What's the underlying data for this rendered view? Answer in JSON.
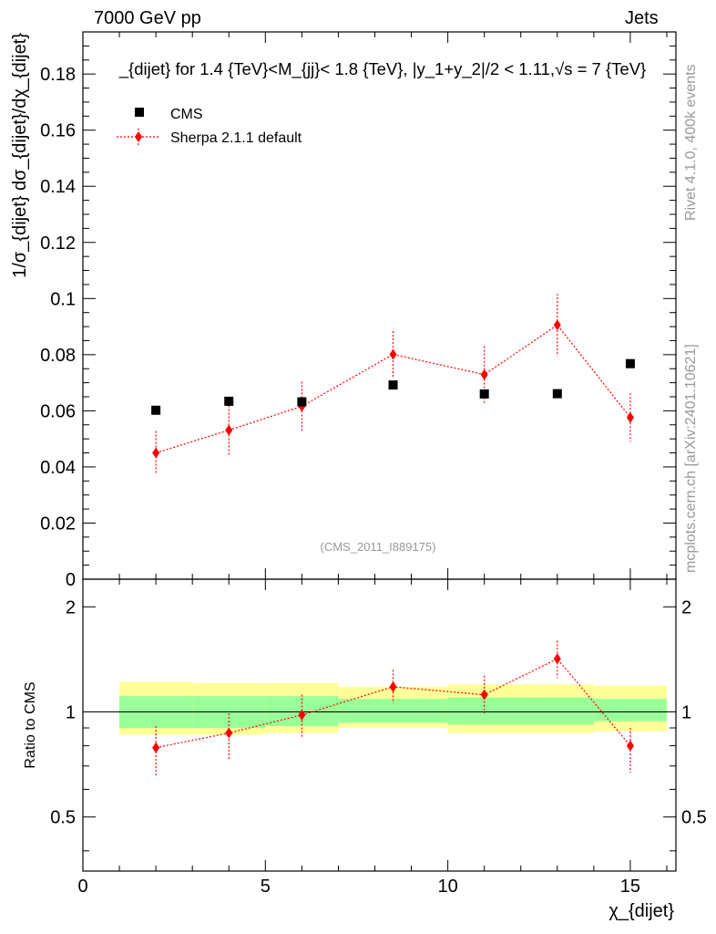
{
  "header": {
    "energy_label": "7000 GeV pp",
    "category_label": "Jets",
    "side_rivet": "Rivet 4.1.0,  400k events",
    "side_mcplots": "mcplots.cern.ch [arXiv:2401.10621]",
    "analysis_id": "(CMS_2011_I889175)"
  },
  "chart_data": {
    "type": "scatter",
    "title": "_{dijet} for 1.4 {TeV}<M_{jj}< 1.8 {TeV}, |y_1+y_2|/2 < 1.11,√s = 7 {TeV}",
    "xlabel": "χ_{dijet}",
    "ylabel": "1/σ_{dijet} dσ_{dijet}/dχ_{dijet}",
    "ratio_ylabel": "Ratio to CMS",
    "xlim": [
      0,
      16.25
    ],
    "ylim": [
      0,
      0.195
    ],
    "ratio_ylim": [
      0.35,
      2.4
    ],
    "x_ticks": [
      "0",
      "5",
      "10",
      "15"
    ],
    "y_ticks": [
      "0",
      "0.02",
      "0.04",
      "0.06",
      "0.08",
      "0.1",
      "0.12",
      "0.14",
      "0.16",
      "0.18"
    ],
    "ratio_ticks": [
      "0.5",
      "1",
      "2"
    ],
    "legend": [
      {
        "name": "CMS",
        "marker": "square",
        "color": "#000000"
      },
      {
        "name": "Sherpa 2.1.1 default",
        "marker": "diamond",
        "color": "#ff0000"
      }
    ],
    "series": [
      {
        "name": "CMS",
        "x": [
          2,
          4,
          6,
          8.5,
          11,
          13,
          15
        ],
        "y": [
          0.0602,
          0.0634,
          0.0632,
          0.0692,
          0.066,
          0.0661,
          0.0768
        ]
      },
      {
        "name": "Sherpa 2.1.1 default",
        "x": [
          2,
          4,
          6,
          8.5,
          11,
          13,
          15
        ],
        "y": [
          0.045,
          0.0531,
          0.0616,
          0.0801,
          0.0729,
          0.0906,
          0.0576
        ],
        "err": [
          0.0078,
          0.0088,
          0.0088,
          0.0083,
          0.0101,
          0.0111,
          0.0086
        ]
      }
    ],
    "ratio": {
      "x": [
        2,
        4,
        6,
        8.5,
        11,
        13,
        15
      ],
      "y": [
        0.79,
        0.87,
        0.98,
        1.18,
        1.12,
        1.42,
        0.8
      ],
      "err_lo": [
        0.14,
        0.14,
        0.14,
        0.12,
        0.13,
        0.17,
        0.13
      ],
      "err_hi": [
        0.12,
        0.12,
        0.14,
        0.14,
        0.15,
        0.18,
        0.1
      ],
      "bands": [
        {
          "x0": 1,
          "x1": 3,
          "inner": [
            0.9,
            1.11
          ],
          "outer": [
            0.86,
            1.22
          ]
        },
        {
          "x0": 3,
          "x1": 5,
          "inner": [
            0.9,
            1.11
          ],
          "outer": [
            0.86,
            1.21
          ]
        },
        {
          "x0": 5,
          "x1": 7,
          "inner": [
            0.91,
            1.11
          ],
          "outer": [
            0.87,
            1.21
          ]
        },
        {
          "x0": 7,
          "x1": 10,
          "inner": [
            0.93,
            1.09
          ],
          "outer": [
            0.9,
            1.18
          ]
        },
        {
          "x0": 10,
          "x1": 14,
          "inner": [
            0.92,
            1.1
          ],
          "outer": [
            0.87,
            1.2
          ]
        },
        {
          "x0": 14,
          "x1": 16,
          "inner": [
            0.94,
            1.09
          ],
          "outer": [
            0.88,
            1.19
          ]
        }
      ]
    },
    "colors": {
      "band_inner": "#99ff99",
      "band_outer": "#ffff99",
      "mc": "#ff0000",
      "data": "#000000"
    }
  }
}
